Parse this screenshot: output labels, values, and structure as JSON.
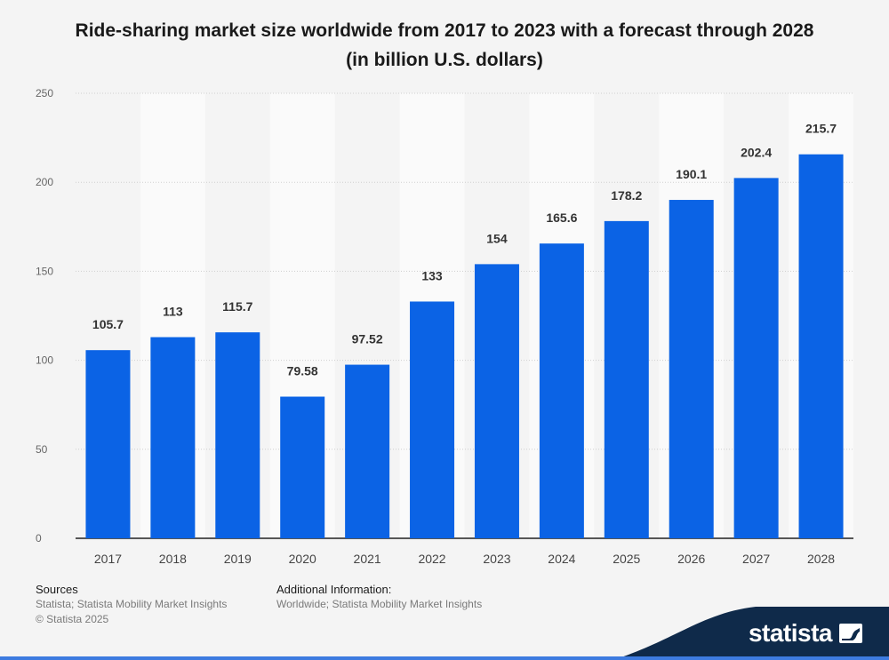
{
  "chart_data": {
    "type": "bar",
    "title": "Ride-sharing market size worldwide from 2017 to 2023 with a forecast through 2028 (in billion U.S. dollars)",
    "categories": [
      "2017",
      "2018",
      "2019",
      "2020",
      "2021",
      "2022",
      "2023",
      "2024",
      "2025",
      "2026",
      "2027",
      "2028"
    ],
    "values": [
      105.7,
      113,
      115.7,
      79.58,
      97.52,
      133,
      154,
      165.6,
      178.2,
      190.1,
      202.4,
      215.7
    ],
    "value_labels": [
      "105.7",
      "113",
      "115.7",
      "79.58",
      "97.52",
      "133",
      "154",
      "165.6",
      "178.2",
      "190.1",
      "202.4",
      "215.7"
    ],
    "yticks": [
      0,
      50,
      100,
      150,
      200,
      250
    ],
    "ylim": [
      0,
      250
    ],
    "xlabel": "",
    "ylabel": "",
    "grid": true,
    "bar_color": "#0b63e5"
  },
  "footer": {
    "sources_header": "Sources",
    "sources_line1": "Statista; Statista Mobility Market Insights",
    "sources_line2": "© Statista 2025",
    "additional_header": "Additional Information:",
    "additional_text": "Worldwide; Statista Mobility Market Insights"
  },
  "brand": {
    "name": "statista",
    "band_color": "#0f2a4a"
  }
}
